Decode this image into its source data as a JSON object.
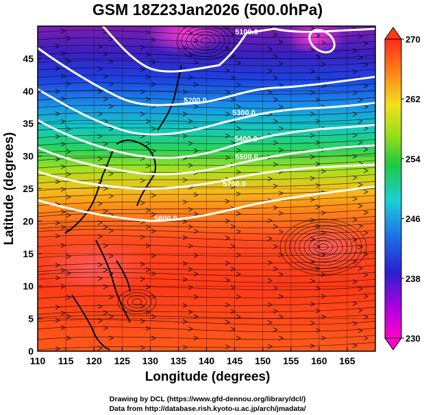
{
  "title": "GSM 18Z23Jan2026 (500.0hPa)",
  "xlabel": "Longitude (degrees)",
  "ylabel": "Latitude  (degrees)",
  "x_ticks": [
    "110",
    "115",
    "120",
    "125",
    "130",
    "135",
    "140",
    "145",
    "150",
    "155",
    "160",
    "165"
  ],
  "y_ticks": [
    "0",
    "5",
    "10",
    "15",
    "20",
    "25",
    "30",
    "35",
    "40",
    "45"
  ],
  "colorbar_ticks": [
    "230",
    "238",
    "246",
    "254",
    "262",
    "270"
  ],
  "contour_labels": [
    "5100.0",
    "5200.0",
    "5300.0",
    "5400.0",
    "5500.0",
    "5700.0",
    "5800.0"
  ],
  "credits": {
    "line1": "Drawing by DCL (https://www.gfd-dennou.org/library/dcl/)",
    "line2": "Data from http://database.rish.kyoto-u.ac.jp/arch/jmadata/"
  },
  "chart_data": {
    "type": "heatmap",
    "description_fields": "shaded temperature (K) with geopotential height contours and wind streamlines",
    "xlim": [
      110,
      170
    ],
    "ylim": [
      0,
      50
    ],
    "colorbar_range": [
      230,
      270
    ],
    "contours": [
      5100,
      5200,
      5300,
      5400,
      5500,
      5700,
      5800
    ]
  }
}
